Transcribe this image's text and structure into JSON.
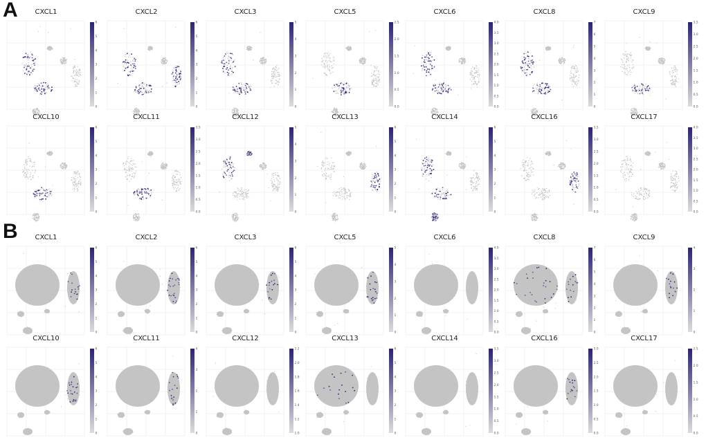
{
  "figure": {
    "panel_a_label": "A",
    "panel_b_label": "B",
    "colors": {
      "high": "#2b2475",
      "low": "#dcdcdc",
      "cell": "#c4c4c4",
      "grid": "#e6e6e6"
    },
    "panel_a": {
      "rows": [
        [
          {
            "gene": "CXCL1",
            "ticks": [
              "0",
              "1",
              "2",
              "3",
              "4",
              "5",
              "6"
            ],
            "hotspots": [
              "blob-1",
              "blob-5"
            ]
          },
          {
            "gene": "CXCL2",
            "ticks": [
              "0",
              "1",
              "2",
              "3",
              "4",
              "5",
              "6"
            ],
            "hotspots": [
              "blob-1",
              "blob-4",
              "blob-5"
            ]
          },
          {
            "gene": "CXCL3",
            "ticks": [
              "0",
              "1",
              "2",
              "3",
              "4",
              "5"
            ],
            "hotspots": [
              "blob-1",
              "blob-5"
            ]
          },
          {
            "gene": "CXCL5",
            "ticks": [
              "0.0",
              "0.5",
              "1.0",
              "1.5",
              "2.0",
              "2.5"
            ],
            "hotspots": [
              "blob-5"
            ]
          },
          {
            "gene": "CXCL6",
            "ticks": [
              "0.0",
              "0.5",
              "1.0",
              "1.5",
              "2.0",
              "2.5",
              "3.0",
              "3.5",
              "4.0"
            ],
            "hotspots": [
              "blob-1",
              "blob-5"
            ]
          },
          {
            "gene": "CXCL8",
            "ticks": [
              "0",
              "1",
              "2",
              "3",
              "4",
              "5",
              "6",
              "7"
            ],
            "hotspots": [
              "blob-1",
              "blob-5"
            ]
          },
          {
            "gene": "CXCL9",
            "ticks": [
              "0.0",
              "0.5",
              "1.0",
              "1.5",
              "2.0",
              "2.5",
              "3.0",
              "3.5"
            ],
            "hotspots": [
              "blob-5"
            ]
          }
        ],
        [
          {
            "gene": "CXCL10",
            "ticks": [
              "0",
              "1",
              "2",
              "3",
              "4",
              "5",
              "6"
            ],
            "hotspots": [
              "blob-5"
            ]
          },
          {
            "gene": "CXCL11",
            "ticks": [
              "0.0",
              "0.5",
              "1.0",
              "1.5",
              "2.0",
              "2.5",
              "3.0",
              "3.5"
            ],
            "hotspots": [
              "blob-5"
            ]
          },
          {
            "gene": "CXCL12",
            "ticks": [
              "0",
              "1",
              "2",
              "3",
              "4",
              "5"
            ],
            "hotspots": [
              "blob-1",
              "blob-2"
            ]
          },
          {
            "gene": "CXCL13",
            "ticks": [
              "0",
              "1",
              "2",
              "3",
              "4",
              "5",
              "6"
            ],
            "hotspots": [
              "blob-4"
            ]
          },
          {
            "gene": "CXCL14",
            "ticks": [
              "0",
              "1",
              "2",
              "3",
              "4",
              "5",
              "6"
            ],
            "hotspots": [
              "blob-1",
              "blob-5",
              "blob-6"
            ]
          },
          {
            "gene": "CXCL16",
            "ticks": [
              "0.0",
              "0.5",
              "1.0",
              "1.5",
              "2.0",
              "2.5",
              "3.0",
              "3.5"
            ],
            "hotspots": [
              "blob-4"
            ]
          },
          {
            "gene": "CXCL17",
            "ticks": [
              "0.0",
              "0.5",
              "1.0",
              "1.5",
              "2.0",
              "2.5",
              "3.0",
              "3.5",
              "4.0"
            ],
            "hotspots": []
          }
        ]
      ]
    },
    "panel_b": {
      "rows": [
        [
          {
            "gene": "CXCL1",
            "ticks": [
              "0",
              "1",
              "2",
              "3",
              "4",
              "5",
              "6"
            ],
            "hotspots": [
              "right-arm"
            ]
          },
          {
            "gene": "CXCL2",
            "ticks": [
              "0",
              "1",
              "2",
              "3",
              "4",
              "5",
              "6"
            ],
            "hotspots": [
              "right-arm"
            ]
          },
          {
            "gene": "CXCL3",
            "ticks": [
              "0",
              "1",
              "2",
              "3",
              "4",
              "5",
              "6"
            ],
            "hotspots": [
              "right-arm"
            ]
          },
          {
            "gene": "CXCL5",
            "ticks": [
              "0",
              "1",
              "2",
              "3",
              "4",
              "5"
            ],
            "hotspots": [
              "right-arm"
            ]
          },
          {
            "gene": "CXCL6",
            "ticks": [
              "0.0",
              "0.5",
              "1.0",
              "1.5",
              "2.0",
              "2.5",
              "3.0",
              "3.5",
              "4.0"
            ],
            "hotspots": []
          },
          {
            "gene": "CXCL8",
            "ticks": [
              "0",
              "1",
              "2",
              "3",
              "4",
              "5",
              "6",
              "7"
            ],
            "hotspots": [
              "right-arm",
              "main-mass"
            ]
          },
          {
            "gene": "CXCL9",
            "ticks": [
              "0",
              "1",
              "2",
              "3",
              "4"
            ],
            "hotspots": [
              "right-arm"
            ]
          }
        ],
        [
          {
            "gene": "CXCL10",
            "ticks": [
              "0",
              "1",
              "2",
              "3",
              "4",
              "5",
              "6"
            ],
            "hotspots": [
              "right-arm"
            ]
          },
          {
            "gene": "CXCL11",
            "ticks": [
              "0",
              "1",
              "2",
              "3",
              "4"
            ],
            "hotspots": [
              "right-arm"
            ]
          },
          {
            "gene": "CXCL12",
            "ticks": [
              "1.0",
              "1.2",
              "1.4",
              "1.6",
              "1.8",
              "2.0",
              "2.2"
            ],
            "hotspots": []
          },
          {
            "gene": "CXCL13",
            "ticks": [
              "0",
              "1",
              "2",
              "3",
              "4",
              "5",
              "6"
            ],
            "hotspots": [
              "main-mass"
            ]
          },
          {
            "gene": "CXCL14",
            "ticks": [
              "0.0",
              "0.5",
              "1.0",
              "1.5",
              "2.0",
              "2.5",
              "3.0",
              "3.5"
            ],
            "hotspots": []
          },
          {
            "gene": "CXCL16",
            "ticks": [
              "0.0",
              "0.5",
              "1.0",
              "1.5",
              "2.0",
              "2.5",
              "3.0"
            ],
            "hotspots": [
              "right-arm"
            ]
          },
          {
            "gene": "CXCL17",
            "ticks": [
              "0.0",
              "0.5",
              "1.0",
              "1.5",
              "2.0",
              "2.5"
            ],
            "hotspots": []
          }
        ]
      ]
    }
  }
}
